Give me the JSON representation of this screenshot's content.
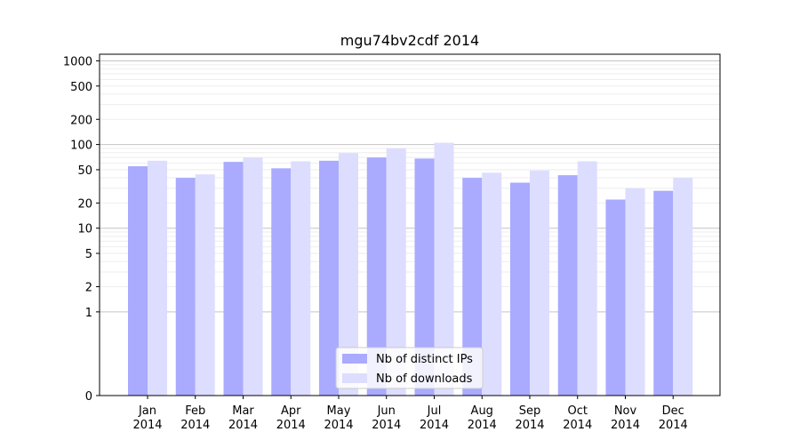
{
  "chart_data": {
    "type": "bar",
    "title": "mgu74bv2cdf 2014",
    "xlabel": "",
    "ylabel": "",
    "yscale": "symlog",
    "ylim": [
      0,
      1200
    ],
    "yticks": [
      0,
      1,
      2,
      5,
      10,
      20,
      50,
      100,
      200,
      500,
      1000
    ],
    "categories": [
      [
        "Jan",
        "2014"
      ],
      [
        "Feb",
        "2014"
      ],
      [
        "Mar",
        "2014"
      ],
      [
        "Apr",
        "2014"
      ],
      [
        "May",
        "2014"
      ],
      [
        "Jun",
        "2014"
      ],
      [
        "Jul",
        "2014"
      ],
      [
        "Aug",
        "2014"
      ],
      [
        "Sep",
        "2014"
      ],
      [
        "Oct",
        "2014"
      ],
      [
        "Nov",
        "2014"
      ],
      [
        "Dec",
        "2014"
      ]
    ],
    "series": [
      {
        "name": "Nb of distinct IPs",
        "color": "#aaaaff",
        "values": [
          55,
          40,
          62,
          52,
          64,
          70,
          68,
          40,
          35,
          43,
          22,
          28
        ]
      },
      {
        "name": "Nb of downloads",
        "color": "#ddddff",
        "values": [
          64,
          44,
          70,
          63,
          79,
          90,
          105,
          46,
          49,
          63,
          30,
          40
        ]
      }
    ],
    "grid": true,
    "legend_position": "bottom-center"
  }
}
